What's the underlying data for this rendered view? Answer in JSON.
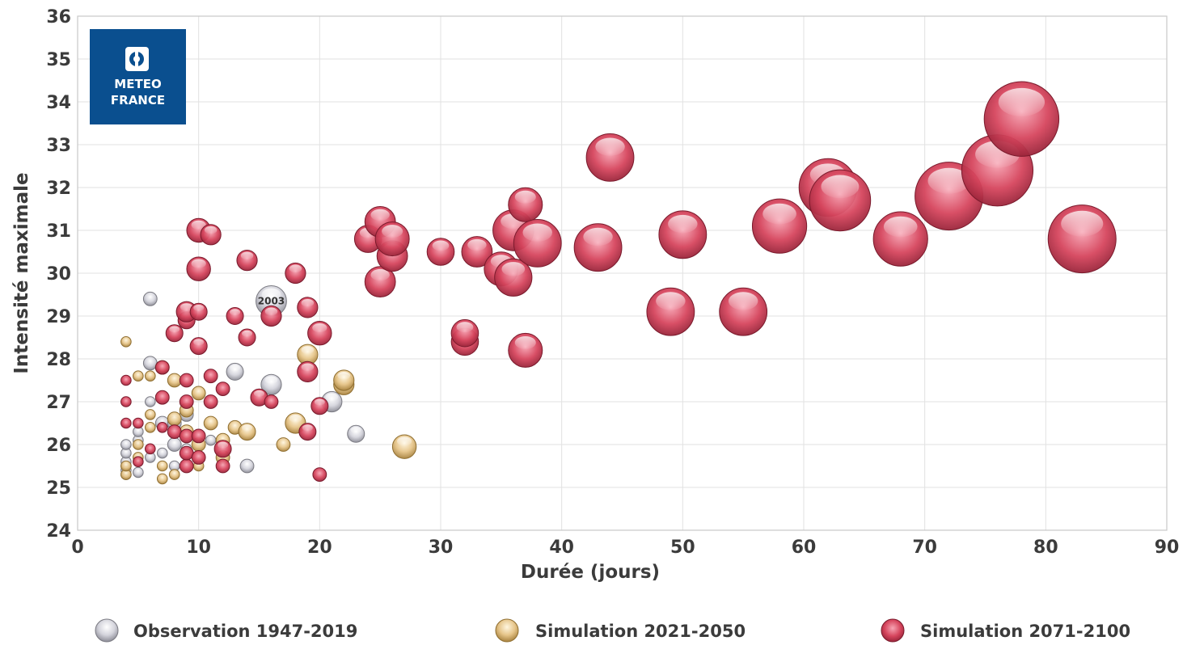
{
  "logo": {
    "line1": "METEO",
    "line2": "FRANCE",
    "color": "#0a4f8f"
  },
  "chart_data": {
    "type": "scatter",
    "xlabel": "Durée (jours)",
    "ylabel": "Intensité maximale",
    "xlim": [
      0,
      90
    ],
    "ylim": [
      24,
      36
    ],
    "xticks": [
      0,
      10,
      20,
      30,
      40,
      50,
      60,
      70,
      80,
      90
    ],
    "yticks": [
      24,
      25,
      26,
      27,
      28,
      29,
      30,
      31,
      32,
      33,
      34,
      35,
      36
    ],
    "grid": true,
    "legend_position": "bottom",
    "annotation": {
      "text": "2003",
      "x": 16,
      "y": 29.35
    },
    "series": [
      {
        "name": "Observation 1947-2019",
        "color": "#c8c8d0",
        "points": [
          [
            4,
            25.3
          ],
          [
            4,
            25.4
          ],
          [
            4,
            25.5
          ],
          [
            4,
            25.6
          ],
          [
            4,
            25.8
          ],
          [
            4,
            26.0
          ],
          [
            5,
            25.35
          ],
          [
            5,
            26.1
          ],
          [
            5,
            26.3
          ],
          [
            6,
            25.7
          ],
          [
            6,
            27.0
          ],
          [
            6,
            27.9
          ],
          [
            6,
            29.4
          ],
          [
            7,
            25.8
          ],
          [
            7,
            26.5
          ],
          [
            8,
            25.5
          ],
          [
            8,
            26.0
          ],
          [
            8,
            26.5
          ],
          [
            9,
            26.7
          ],
          [
            9,
            25.9
          ],
          [
            11,
            26.1
          ],
          [
            13,
            27.7
          ],
          [
            14,
            25.5
          ],
          [
            16,
            27.4
          ],
          [
            16,
            29.35
          ],
          [
            21,
            27.0
          ],
          [
            23,
            26.25
          ]
        ],
        "sizes": [
          3,
          3,
          3,
          3,
          3,
          3,
          3,
          3,
          3,
          3,
          3,
          4,
          4,
          3,
          4,
          3,
          4,
          4,
          4,
          3,
          3,
          5,
          4,
          6,
          9,
          6,
          5
        ]
      },
      {
        "name": "Simulation 2021-2050",
        "color": "#e6c58a",
        "points": [
          [
            4,
            25.3
          ],
          [
            4,
            25.5
          ],
          [
            4,
            28.4
          ],
          [
            5,
            25.7
          ],
          [
            5,
            26.0
          ],
          [
            5,
            27.6
          ],
          [
            6,
            26.7
          ],
          [
            6,
            26.4
          ],
          [
            6,
            27.6
          ],
          [
            7,
            25.2
          ],
          [
            7,
            25.5
          ],
          [
            7,
            27.8
          ],
          [
            8,
            25.3
          ],
          [
            8,
            26.6
          ],
          [
            8,
            27.5
          ],
          [
            9,
            26.3
          ],
          [
            9,
            26.8
          ],
          [
            10,
            25.5
          ],
          [
            10,
            26.0
          ],
          [
            10,
            27.2
          ],
          [
            11,
            26.5
          ],
          [
            12,
            25.7
          ],
          [
            12,
            26.1
          ],
          [
            13,
            26.4
          ],
          [
            14,
            26.3
          ],
          [
            17,
            26.0
          ],
          [
            18,
            26.5
          ],
          [
            19,
            28.1
          ],
          [
            22,
            27.4
          ],
          [
            22,
            27.5
          ],
          [
            27,
            25.95
          ]
        ],
        "sizes": [
          3,
          3,
          3,
          3,
          3,
          3,
          3,
          3,
          3,
          3,
          3,
          4,
          3,
          4,
          4,
          4,
          4,
          3,
          4,
          4,
          4,
          4,
          4,
          4,
          5,
          4,
          6,
          6,
          6,
          6,
          7
        ]
      },
      {
        "name": "Simulation 2071-2100",
        "color": "#d6455d",
        "points": [
          [
            4,
            26.5
          ],
          [
            4,
            27.0
          ],
          [
            4,
            27.5
          ],
          [
            5,
            25.6
          ],
          [
            5,
            26.5
          ],
          [
            6,
            25.9
          ],
          [
            7,
            26.4
          ],
          [
            7,
            27.1
          ],
          [
            7,
            27.8
          ],
          [
            8,
            28.6
          ],
          [
            8,
            26.3
          ],
          [
            9,
            25.5
          ],
          [
            9,
            25.8
          ],
          [
            9,
            26.2
          ],
          [
            9,
            27.0
          ],
          [
            9,
            27.5
          ],
          [
            9,
            28.9
          ],
          [
            9,
            29.1
          ],
          [
            10,
            25.7
          ],
          [
            10,
            26.2
          ],
          [
            10,
            28.3
          ],
          [
            10,
            29.1
          ],
          [
            10,
            30.1
          ],
          [
            10,
            31.0
          ],
          [
            11,
            27.0
          ],
          [
            11,
            27.6
          ],
          [
            11,
            30.9
          ],
          [
            12,
            25.5
          ],
          [
            12,
            25.9
          ],
          [
            12,
            27.3
          ],
          [
            13,
            29.0
          ],
          [
            14,
            28.5
          ],
          [
            14,
            30.3
          ],
          [
            15,
            27.1
          ],
          [
            16,
            27.0
          ],
          [
            16,
            29.0
          ],
          [
            18,
            30.0
          ],
          [
            19,
            26.3
          ],
          [
            19,
            27.7
          ],
          [
            19,
            29.2
          ],
          [
            20,
            25.3
          ],
          [
            20,
            26.9
          ],
          [
            20,
            28.6
          ],
          [
            24,
            30.8
          ],
          [
            25,
            31.2
          ],
          [
            25,
            29.8
          ],
          [
            26,
            30.4
          ],
          [
            26,
            30.8
          ],
          [
            30,
            30.5
          ],
          [
            32,
            28.4
          ],
          [
            32,
            28.6
          ],
          [
            33,
            30.5
          ],
          [
            35,
            30.1
          ],
          [
            36,
            29.9
          ],
          [
            36,
            31.0
          ],
          [
            37,
            31.6
          ],
          [
            37,
            28.2
          ],
          [
            38,
            30.7
          ],
          [
            43,
            30.6
          ],
          [
            44,
            32.7
          ],
          [
            49,
            29.1
          ],
          [
            50,
            30.9
          ],
          [
            55,
            29.1
          ],
          [
            58,
            31.1
          ],
          [
            62,
            32.0
          ],
          [
            63,
            31.7
          ],
          [
            68,
            30.8
          ],
          [
            72,
            31.8
          ],
          [
            76,
            32.4
          ],
          [
            78,
            33.6
          ],
          [
            83,
            30.8
          ]
        ],
        "sizes": [
          3,
          3,
          3,
          3,
          3,
          3,
          3,
          4,
          4,
          5,
          4,
          4,
          4,
          4,
          4,
          4,
          5,
          6,
          4,
          4,
          5,
          5,
          7,
          7,
          4,
          4,
          6,
          4,
          5,
          4,
          5,
          5,
          6,
          5,
          4,
          6,
          6,
          5,
          6,
          6,
          4,
          5,
          7,
          8,
          9,
          9,
          9,
          10,
          8,
          8,
          8,
          9,
          10,
          11,
          12,
          10,
          10,
          14,
          14,
          14,
          14,
          14,
          14,
          16,
          17,
          18,
          16,
          20,
          21,
          22,
          20
        ]
      }
    ]
  }
}
